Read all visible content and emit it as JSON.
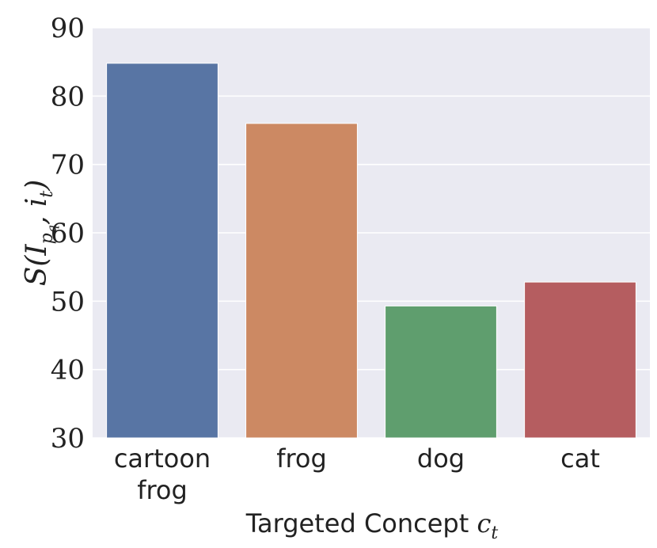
{
  "chart_data": {
    "type": "bar",
    "categories": [
      [
        "cartoon",
        "frog"
      ],
      [
        "frog"
      ],
      [
        "dog"
      ],
      [
        "cat"
      ]
    ],
    "values": [
      84.8,
      76.0,
      49.3,
      52.8
    ],
    "colors": [
      "#5875a4",
      "#cc8963",
      "#5f9e6e",
      "#b55d60"
    ],
    "xlabel": {
      "text": "Targeted Concept ",
      "math_base": "c",
      "math_sub": "t"
    },
    "ylabel": {
      "prefix": "S(I",
      "sub": "p",
      "subsub": "q",
      "mid": ", i",
      "sub2": "t",
      "suffix": ")"
    },
    "ylim": [
      30,
      90
    ],
    "yticks": [
      30,
      40,
      50,
      60,
      70,
      80,
      90
    ],
    "grid": true,
    "background": "#eaeaf2"
  }
}
